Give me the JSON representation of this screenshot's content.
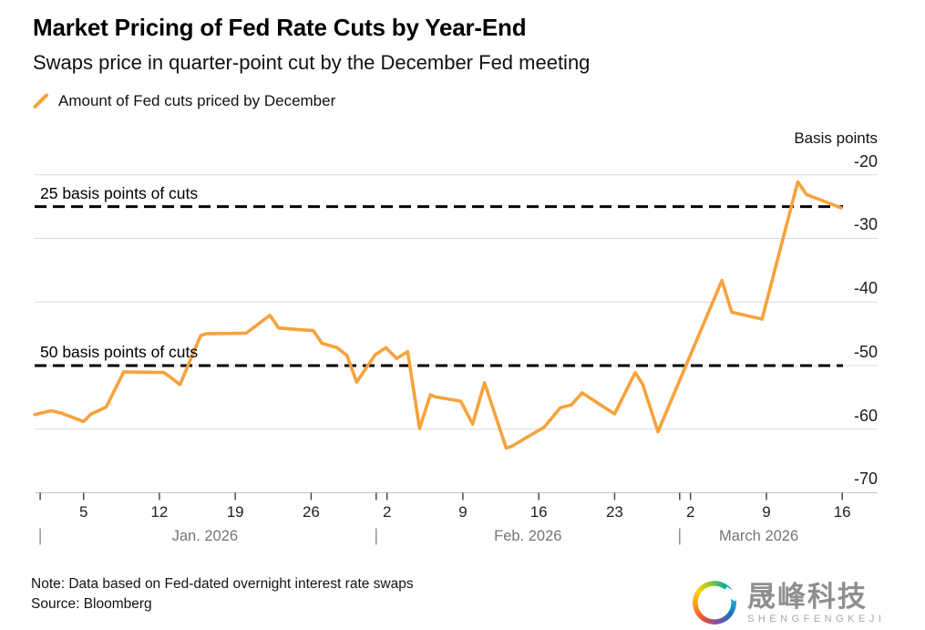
{
  "colors": {
    "line": "#F7A23C",
    "grid": "#DBDBDB",
    "axis": "#C6C6C6",
    "ref_line": "#000000",
    "tick_mark": "#3F3F3F",
    "month_separator": "#8A8A8A",
    "month_text": "#757575",
    "tick_text": "#1F1F1F",
    "watermark_gray": "#8F8F8F"
  },
  "footer": {
    "note": "Note: Data based on Fed-dated overnight interest rate swaps",
    "source": "Source: Bloomberg"
  },
  "watermark": {
    "cjk": "晟峰科技",
    "latin": "SHENGFENGKEJI",
    "logo_icon": "rainbow-swirl"
  },
  "chart_data": {
    "type": "line",
    "title": "Market Pricing of Fed Rate Cuts by Year-End",
    "subtitle": "Swaps price in quarter-point cut by the December Fed meeting",
    "ylabel": "Basis points",
    "y_unit": "basis points",
    "x_unit": "days since 2026-01-01",
    "ylim": [
      -70,
      -20
    ],
    "y_ticks": [
      -20,
      -30,
      -40,
      -50,
      -60,
      -70
    ],
    "grid": "horizontal",
    "legend_position": "top-left",
    "x_ticks": [
      {
        "d": 4,
        "label": "5"
      },
      {
        "d": 11,
        "label": "12"
      },
      {
        "d": 18,
        "label": "19"
      },
      {
        "d": 25,
        "label": "26"
      },
      {
        "d": 32,
        "label": "2"
      },
      {
        "d": 39,
        "label": "9"
      },
      {
        "d": 46,
        "label": "16"
      },
      {
        "d": 53,
        "label": "23"
      },
      {
        "d": 60,
        "label": "2"
      },
      {
        "d": 67,
        "label": "9"
      },
      {
        "d": 74,
        "label": "16"
      }
    ],
    "month_ticks": [
      0,
      31,
      59
    ],
    "month_labels": [
      {
        "d": 15.2,
        "label": "Jan. 2026"
      },
      {
        "d": 45.0,
        "label": "Feb. 2026"
      },
      {
        "d": 66.3,
        "label": "March 2026"
      }
    ],
    "ref_lines": [
      {
        "bp": -25,
        "label": "25 basis points of cuts"
      },
      {
        "bp": -50,
        "label": "50 basis points of cuts"
      }
    ],
    "series": [
      {
        "name": "Amount of Fed cuts priced by December",
        "color": "#F7A23C",
        "points": [
          [
            -0.5,
            -57.7
          ],
          [
            1,
            -57.1
          ],
          [
            2,
            -57.5
          ],
          [
            4,
            -58.8
          ],
          [
            4.7,
            -57.6
          ],
          [
            5.5,
            -57.0
          ],
          [
            6.1,
            -56.5
          ],
          [
            7.7,
            -51.0
          ],
          [
            11.4,
            -51.1
          ],
          [
            12.0,
            -51.8
          ],
          [
            12.9,
            -53.0
          ],
          [
            14.8,
            -45.3
          ],
          [
            15.3,
            -45.0
          ],
          [
            19,
            -44.9
          ],
          [
            21.2,
            -42.1
          ],
          [
            22,
            -44.1
          ],
          [
            24.3,
            -44.4
          ],
          [
            25.2,
            -44.5
          ],
          [
            26,
            -46.5
          ],
          [
            27.4,
            -47.2
          ],
          [
            28.3,
            -48.4
          ],
          [
            29.2,
            -52.6
          ],
          [
            30.9,
            -48.3
          ],
          [
            31.9,
            -47.2
          ],
          [
            32.9,
            -48.9
          ],
          [
            33.9,
            -47.8
          ],
          [
            35,
            -59.9
          ],
          [
            36,
            -54.6
          ],
          [
            36.4,
            -54.9
          ],
          [
            38.8,
            -55.6
          ],
          [
            39.9,
            -59.2
          ],
          [
            41,
            -52.7
          ],
          [
            43,
            -63.0
          ],
          [
            43.5,
            -62.7
          ],
          [
            46.5,
            -59.7
          ],
          [
            48,
            -56.6
          ],
          [
            49,
            -56.2
          ],
          [
            50,
            -54.3
          ],
          [
            51.8,
            -56.3
          ],
          [
            53,
            -57.6
          ],
          [
            54.9,
            -51.1
          ],
          [
            55.6,
            -53.0
          ],
          [
            57,
            -60.4
          ],
          [
            62.9,
            -36.6
          ],
          [
            63.8,
            -41.6
          ],
          [
            66.6,
            -42.7
          ],
          [
            69.9,
            -21.1
          ],
          [
            70.7,
            -23.1
          ],
          [
            73.9,
            -25.2
          ]
        ]
      }
    ]
  }
}
